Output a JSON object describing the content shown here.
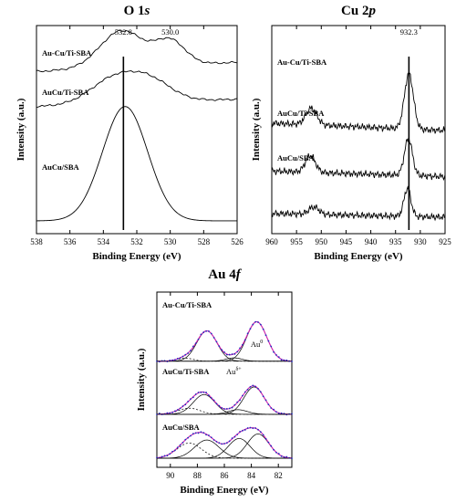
{
  "chart_data": [
    {
      "type": "line",
      "title": "O 1s",
      "xlabel": "Binding Energy (eV)",
      "ylabel": "Intensity (a.u.)",
      "xlim": [
        538,
        526
      ],
      "xticks": [
        "538",
        "536",
        "534",
        "532",
        "530",
        "528",
        "526"
      ],
      "y_ticks_shown": false,
      "reference_line_x": 532.8,
      "annotations": [
        {
          "text": "532.8",
          "x": 532.8
        },
        {
          "text": "530.0",
          "x": 530.0
        }
      ],
      "series": [
        {
          "name": "Au-Cu/Ti-SBA",
          "style": "jagged",
          "offset": 0.8,
          "baseline": 0.03,
          "tilt": 0.05,
          "peaks": [
            {
              "center": 532.9,
              "height": 0.2,
              "width": 1.3
            },
            {
              "center": 530.0,
              "height": 0.13,
              "width": 0.9
            }
          ]
        },
        {
          "name": "AuCu/Ti-SBA",
          "style": "jagged",
          "offset": 0.62,
          "baseline": 0.02,
          "tilt": 0.04,
          "peaks": [
            {
              "center": 533.4,
              "height": 0.13,
              "width": 1.4
            },
            {
              "center": 531.2,
              "height": 0.11,
              "width": 1.3
            }
          ]
        },
        {
          "name": "AuCu/SBA",
          "style": "smooth",
          "offset": 0.0,
          "baseline": 0.02,
          "tilt": 0.0,
          "peaks": [
            {
              "center": 532.7,
              "height": 0.62,
              "width": 1.35
            }
          ]
        }
      ]
    },
    {
      "type": "line",
      "title": "Cu 2p",
      "xlabel": "Binding Energy (eV)",
      "ylabel": "Intensity (a.u.)",
      "xlim": [
        960,
        925
      ],
      "xticks": [
        "960",
        "955",
        "950",
        "945",
        "940",
        "935",
        "930",
        "925"
      ],
      "y_ticks_shown": false,
      "reference_line_x": 932.3,
      "annotations": [
        {
          "text": "932.3",
          "x": 932.3
        }
      ],
      "series": [
        {
          "name": "Au-Cu/Ti-SBA",
          "style": "noisy",
          "offset": 0.52,
          "baseline": 0.03,
          "tilt": -0.04,
          "peaks": [
            {
              "center": 932.3,
              "height": 0.3,
              "width": 0.9
            },
            {
              "center": 952.0,
              "height": 0.09,
              "width": 1.1
            }
          ]
        },
        {
          "name": "AuCu/Ti-SBA",
          "style": "noisy",
          "offset": 0.25,
          "baseline": 0.04,
          "tilt": -0.03,
          "peaks": [
            {
              "center": 932.4,
              "height": 0.2,
              "width": 0.8
            },
            {
              "center": 952.2,
              "height": 0.09,
              "width": 1.0
            }
          ]
        },
        {
          "name": "AuCu/SBA",
          "style": "noisy",
          "offset": 0.0,
          "baseline": 0.06,
          "tilt": -0.02,
          "peaks": [
            {
              "center": 932.6,
              "height": 0.15,
              "width": 0.7
            },
            {
              "center": 951.5,
              "height": 0.04,
              "width": 1.0
            }
          ]
        }
      ]
    },
    {
      "type": "line",
      "title": "Au 4f",
      "xlabel": "Binding Energy (eV)",
      "ylabel": "Intensity (a.u.)",
      "xlim": [
        91,
        81
      ],
      "xticks": [
        "90",
        "88",
        "86",
        "84",
        "82"
      ],
      "y_ticks_shown": false,
      "annotations": [
        {
          "text": "Au",
          "sup": "0",
          "x": 83.6
        },
        {
          "text": "Au",
          "sup": "δ+",
          "x": 85.3
        }
      ],
      "series": [
        {
          "name": "Au-Cu/Ti-SBA",
          "style": "fit",
          "offset": 0.64,
          "baseline": 0.0,
          "tilt": 0.0,
          "peaks": [
            {
              "center": 87.3,
              "height": 0.2,
              "width": 0.75
            },
            {
              "center": 83.6,
              "height": 0.26,
              "width": 0.75
            },
            {
              "center": 85.3,
              "height": 0.022,
              "width": 0.6
            },
            {
              "center": 88.9,
              "height": 0.02,
              "width": 0.6
            }
          ]
        },
        {
          "name": "AuCu/Ti-SBA",
          "style": "fit",
          "offset": 0.29,
          "baseline": 0.0,
          "tilt": 0.0,
          "peaks": [
            {
              "center": 87.5,
              "height": 0.13,
              "width": 0.8
            },
            {
              "center": 83.8,
              "height": 0.18,
              "width": 0.75
            },
            {
              "center": 85.0,
              "height": 0.03,
              "width": 0.7
            },
            {
              "center": 88.6,
              "height": 0.04,
              "width": 0.8
            }
          ]
        },
        {
          "name": "AuCu/SBA",
          "style": "fit",
          "offset": 0.0,
          "baseline": 0.0,
          "tilt": 0.0,
          "peaks": [
            {
              "center": 87.3,
              "height": 0.12,
              "width": 0.9
            },
            {
              "center": 83.5,
              "height": 0.16,
              "width": 0.8
            },
            {
              "center": 84.9,
              "height": 0.13,
              "width": 0.8
            },
            {
              "center": 88.6,
              "height": 0.1,
              "width": 0.9
            }
          ]
        }
      ]
    }
  ]
}
